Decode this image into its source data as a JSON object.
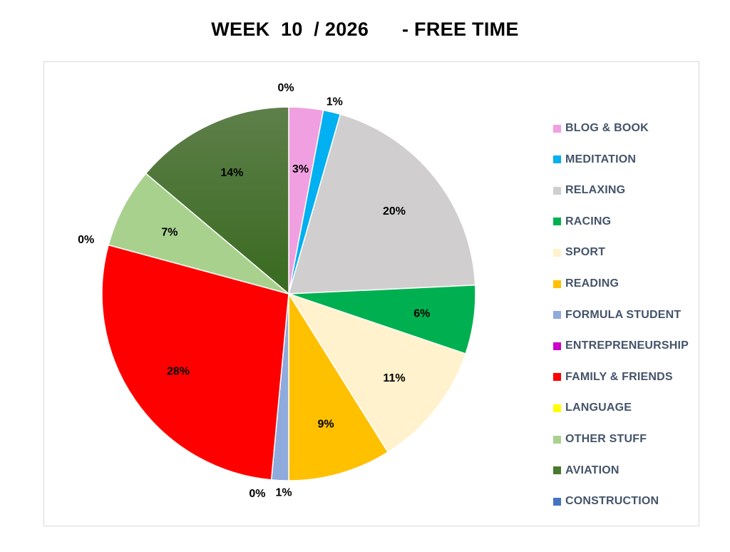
{
  "chart_data": {
    "type": "pie",
    "title": "WEEK  10  / 2026      - FREE TIME",
    "legend_position": "right",
    "slices": [
      {
        "name": "BLOG & BOOK",
        "value": 3,
        "label": "3%",
        "color": "#f0a0e0"
      },
      {
        "name": "MEDITATION",
        "value": 1.5,
        "label": "1%",
        "color": "#00b0f0"
      },
      {
        "name": "RELAXING",
        "value": 20,
        "label": "20%",
        "color": "#d0cece"
      },
      {
        "name": "RACING",
        "value": 6,
        "label": "6%",
        "color": "#00b050"
      },
      {
        "name": "SPORT",
        "value": 11,
        "label": "11%",
        "color": "#fff2cc"
      },
      {
        "name": "READING",
        "value": 9,
        "label": "9%",
        "color": "#ffc000"
      },
      {
        "name": "FORMULA STUDENT",
        "value": 1.5,
        "label": "1%",
        "color": "#8faadc"
      },
      {
        "name": "ENTREPRENEURSHIP",
        "value": 0,
        "label": "0%",
        "color": "#cc00cc"
      },
      {
        "name": "FAMILY & FRIENDS",
        "value": 28,
        "label": "28%",
        "color": "#ff0000"
      },
      {
        "name": "LANGUAGE",
        "value": 0,
        "label": "0%",
        "color": "#ffff00"
      },
      {
        "name": "OTHER STUFF",
        "value": 7,
        "label": "7%",
        "color": "#a9d18e"
      },
      {
        "name": "AVIATION",
        "value": 14,
        "label": "14%",
        "color": "#4a7a2e"
      },
      {
        "name": "CONSTRUCTION",
        "value": 0,
        "label": "0%",
        "color": "#4472c4"
      }
    ]
  }
}
